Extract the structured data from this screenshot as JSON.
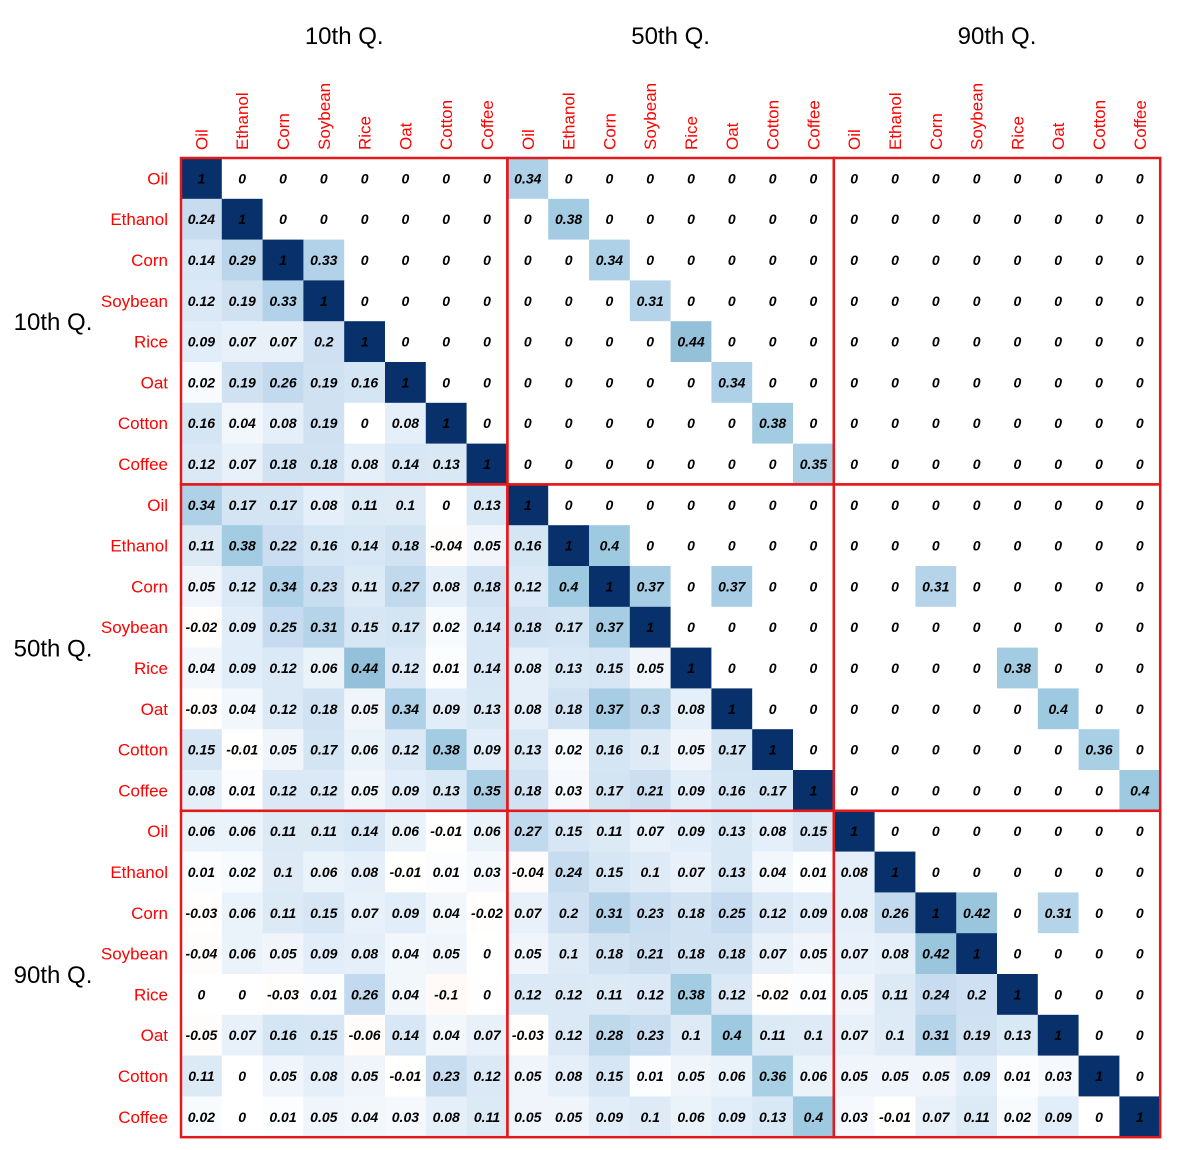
{
  "chart_data": {
    "type": "heatmap",
    "variables": [
      "Oil",
      "Ethanol",
      "Corn",
      "Soybean",
      "Rice",
      "Oat",
      "Cotton",
      "Coffee"
    ],
    "quantiles": [
      "10th Q.",
      "50th Q.",
      "90th Q."
    ],
    "colors": {
      "label": "#ff0000",
      "border": "#e31a1c",
      "positive": "#08306b",
      "negative": "#b2182b",
      "value_text": "#000000"
    },
    "value_range": [
      -1,
      1
    ],
    "values": [
      [
        "1",
        "0",
        "0",
        "0",
        "0",
        "0",
        "0",
        "0",
        "0.34",
        "0",
        "0",
        "0",
        "0",
        "0",
        "0",
        "0",
        "0",
        "0",
        "0",
        "0",
        "0",
        "0",
        "0",
        "0"
      ],
      [
        "0.24",
        "1",
        "0",
        "0",
        "0",
        "0",
        "0",
        "0",
        "0",
        "0.38",
        "0",
        "0",
        "0",
        "0",
        "0",
        "0",
        "0",
        "0",
        "0",
        "0",
        "0",
        "0",
        "0",
        "0"
      ],
      [
        "0.14",
        "0.29",
        "1",
        "0.33",
        "0",
        "0",
        "0",
        "0",
        "0",
        "0",
        "0.34",
        "0",
        "0",
        "0",
        "0",
        "0",
        "0",
        "0",
        "0",
        "0",
        "0",
        "0",
        "0",
        "0"
      ],
      [
        "0.12",
        "0.19",
        "0.33",
        "1",
        "0",
        "0",
        "0",
        "0",
        "0",
        "0",
        "0",
        "0.31",
        "0",
        "0",
        "0",
        "0",
        "0",
        "0",
        "0",
        "0",
        "0",
        "0",
        "0",
        "0"
      ],
      [
        "0.09",
        "0.07",
        "0.07",
        "0.2",
        "1",
        "0",
        "0",
        "0",
        "0",
        "0",
        "0",
        "0",
        "0.44",
        "0",
        "0",
        "0",
        "0",
        "0",
        "0",
        "0",
        "0",
        "0",
        "0",
        "0"
      ],
      [
        "0.02",
        "0.19",
        "0.26",
        "0.19",
        "0.16",
        "1",
        "0",
        "0",
        "0",
        "0",
        "0",
        "0",
        "0",
        "0.34",
        "0",
        "0",
        "0",
        "0",
        "0",
        "0",
        "0",
        "0",
        "0",
        "0"
      ],
      [
        "0.16",
        "0.04",
        "0.08",
        "0.19",
        "0",
        "0.08",
        "1",
        "0",
        "0",
        "0",
        "0",
        "0",
        "0",
        "0",
        "0.38",
        "0",
        "0",
        "0",
        "0",
        "0",
        "0",
        "0",
        "0",
        "0"
      ],
      [
        "0.12",
        "0.07",
        "0.18",
        "0.18",
        "0.08",
        "0.14",
        "0.13",
        "1",
        "0",
        "0",
        "0",
        "0",
        "0",
        "0",
        "0",
        "0.35",
        "0",
        "0",
        "0",
        "0",
        "0",
        "0",
        "0",
        "0"
      ],
      [
        "0.34",
        "0.17",
        "0.17",
        "0.08",
        "0.11",
        "0.1",
        "0",
        "0.13",
        "1",
        "0",
        "0",
        "0",
        "0",
        "0",
        "0",
        "0",
        "0",
        "0",
        "0",
        "0",
        "0",
        "0",
        "0",
        "0"
      ],
      [
        "0.11",
        "0.38",
        "0.22",
        "0.16",
        "0.14",
        "0.18",
        "-0.04",
        "0.05",
        "0.16",
        "1",
        "0.4",
        "0",
        "0",
        "0",
        "0",
        "0",
        "0",
        "0",
        "0",
        "0",
        "0",
        "0",
        "0",
        "0"
      ],
      [
        "0.05",
        "0.12",
        "0.34",
        "0.23",
        "0.11",
        "0.27",
        "0.08",
        "0.18",
        "0.12",
        "0.4",
        "1",
        "0.37",
        "0",
        "0.37",
        "0",
        "0",
        "0",
        "0",
        "0.31",
        "0",
        "0",
        "0",
        "0",
        "0"
      ],
      [
        "-0.02",
        "0.09",
        "0.25",
        "0.31",
        "0.15",
        "0.17",
        "0.02",
        "0.14",
        "0.18",
        "0.17",
        "0.37",
        "1",
        "0",
        "0",
        "0",
        "0",
        "0",
        "0",
        "0",
        "0",
        "0",
        "0",
        "0",
        "0"
      ],
      [
        "0.04",
        "0.09",
        "0.12",
        "0.06",
        "0.44",
        "0.12",
        "0.01",
        "0.14",
        "0.08",
        "0.13",
        "0.15",
        "0.05",
        "1",
        "0",
        "0",
        "0",
        "0",
        "0",
        "0",
        "0",
        "0.38",
        "0",
        "0",
        "0"
      ],
      [
        "-0.03",
        "0.04",
        "0.12",
        "0.18",
        "0.05",
        "0.34",
        "0.09",
        "0.13",
        "0.08",
        "0.18",
        "0.37",
        "0.3",
        "0.08",
        "1",
        "0",
        "0",
        "0",
        "0",
        "0",
        "0",
        "0",
        "0.4",
        "0",
        "0"
      ],
      [
        "0.15",
        "-0.01",
        "0.05",
        "0.17",
        "0.06",
        "0.12",
        "0.38",
        "0.09",
        "0.13",
        "0.02",
        "0.16",
        "0.1",
        "0.05",
        "0.17",
        "1",
        "0",
        "0",
        "0",
        "0",
        "0",
        "0",
        "0",
        "0.36",
        "0"
      ],
      [
        "0.08",
        "0.01",
        "0.12",
        "0.12",
        "0.05",
        "0.09",
        "0.13",
        "0.35",
        "0.18",
        "0.03",
        "0.17",
        "0.21",
        "0.09",
        "0.16",
        "0.17",
        "1",
        "0",
        "0",
        "0",
        "0",
        "0",
        "0",
        "0",
        "0.4"
      ],
      [
        "0.06",
        "0.06",
        "0.11",
        "0.11",
        "0.14",
        "0.06",
        "-0.01",
        "0.06",
        "0.27",
        "0.15",
        "0.11",
        "0.07",
        "0.09",
        "0.13",
        "0.08",
        "0.15",
        "1",
        "0",
        "0",
        "0",
        "0",
        "0",
        "0",
        "0"
      ],
      [
        "0.01",
        "0.02",
        "0.1",
        "0.06",
        "0.08",
        "-0.01",
        "0.01",
        "0.03",
        "-0.04",
        "0.24",
        "0.15",
        "0.1",
        "0.07",
        "0.13",
        "0.04",
        "0.01",
        "0.08",
        "1",
        "0",
        "0",
        "0",
        "0",
        "0",
        "0"
      ],
      [
        "-0.03",
        "0.06",
        "0.11",
        "0.15",
        "0.07",
        "0.09",
        "0.04",
        "-0.02",
        "0.07",
        "0.2",
        "0.31",
        "0.23",
        "0.18",
        "0.25",
        "0.12",
        "0.09",
        "0.08",
        "0.26",
        "1",
        "0.42",
        "0",
        "0.31",
        "0",
        "0"
      ],
      [
        "-0.04",
        "0.06",
        "0.05",
        "0.09",
        "0.08",
        "0.04",
        "0.05",
        "0",
        "0.05",
        "0.1",
        "0.18",
        "0.21",
        "0.18",
        "0.18",
        "0.07",
        "0.05",
        "0.07",
        "0.08",
        "0.42",
        "1",
        "0",
        "0",
        "0",
        "0"
      ],
      [
        "0",
        "0",
        "-0.03",
        "0.01",
        "0.26",
        "0.04",
        "-0.1",
        "0",
        "0.12",
        "0.12",
        "0.11",
        "0.12",
        "0.38",
        "0.12",
        "-0.02",
        "0.01",
        "0.05",
        "0.11",
        "0.24",
        "0.2",
        "1",
        "0",
        "0",
        "0"
      ],
      [
        "-0.05",
        "0.07",
        "0.16",
        "0.15",
        "-0.06",
        "0.14",
        "0.04",
        "0.07",
        "-0.03",
        "0.12",
        "0.28",
        "0.23",
        "0.1",
        "0.4",
        "0.11",
        "0.1",
        "0.07",
        "0.1",
        "0.31",
        "0.19",
        "0.13",
        "1",
        "0",
        "0"
      ],
      [
        "0.11",
        "0",
        "0.05",
        "0.08",
        "0.05",
        "-0.01",
        "0.23",
        "0.12",
        "0.05",
        "0.08",
        "0.15",
        "0.01",
        "0.05",
        "0.06",
        "0.36",
        "0.06",
        "0.05",
        "0.05",
        "0.05",
        "0.09",
        "0.01",
        "0.03",
        "1",
        "0"
      ],
      [
        "0.02",
        "0",
        "0.01",
        "0.05",
        "0.04",
        "0.03",
        "0.08",
        "0.11",
        "0.05",
        "0.05",
        "0.09",
        "0.1",
        "0.06",
        "0.09",
        "0.13",
        "0.4",
        "0.03",
        "-0.01",
        "0.07",
        "0.11",
        "0.02",
        "0.09",
        "0",
        "1"
      ]
    ]
  }
}
